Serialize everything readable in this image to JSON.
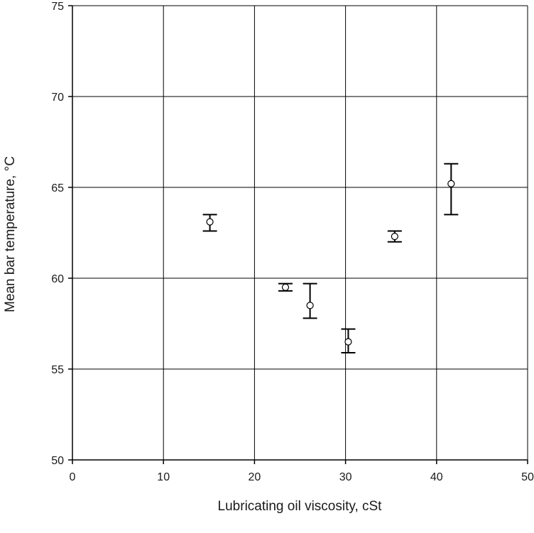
{
  "chart_data": {
    "type": "scatter",
    "title": "",
    "xlabel": "Lubricating oil viscosity, cSt",
    "ylabel": "Mean bar temperature, °C",
    "xlim": [
      0,
      50
    ],
    "ylim": [
      50,
      75
    ],
    "x_ticks": [
      0,
      10,
      20,
      30,
      40,
      50
    ],
    "y_ticks": [
      50,
      55,
      60,
      65,
      70,
      75
    ],
    "x_tick_labels": [
      "0",
      "10",
      "20",
      "30",
      "40",
      "50"
    ],
    "y_tick_labels": [
      "50",
      "55",
      "60",
      "65",
      "70",
      "75"
    ],
    "grid": true,
    "legend": "none",
    "marker": "open-circle",
    "error_bars": true,
    "colors": {
      "grid": "#000000",
      "marker_fill": "#ffffff",
      "marker_stroke": "#000000",
      "error_bar": "#000000"
    },
    "points": [
      {
        "x": 15.1,
        "y": 63.1,
        "y_low": 62.6,
        "y_high": 63.5
      },
      {
        "x": 23.4,
        "y": 59.5,
        "y_low": 59.3,
        "y_high": 59.7
      },
      {
        "x": 26.1,
        "y": 58.5,
        "y_low": 57.8,
        "y_high": 59.7
      },
      {
        "x": 30.3,
        "y": 56.5,
        "y_low": 55.9,
        "y_high": 57.2
      },
      {
        "x": 35.4,
        "y": 62.3,
        "y_low": 62.0,
        "y_high": 62.6
      },
      {
        "x": 41.6,
        "y": 65.2,
        "y_low": 63.5,
        "y_high": 66.3
      }
    ]
  }
}
